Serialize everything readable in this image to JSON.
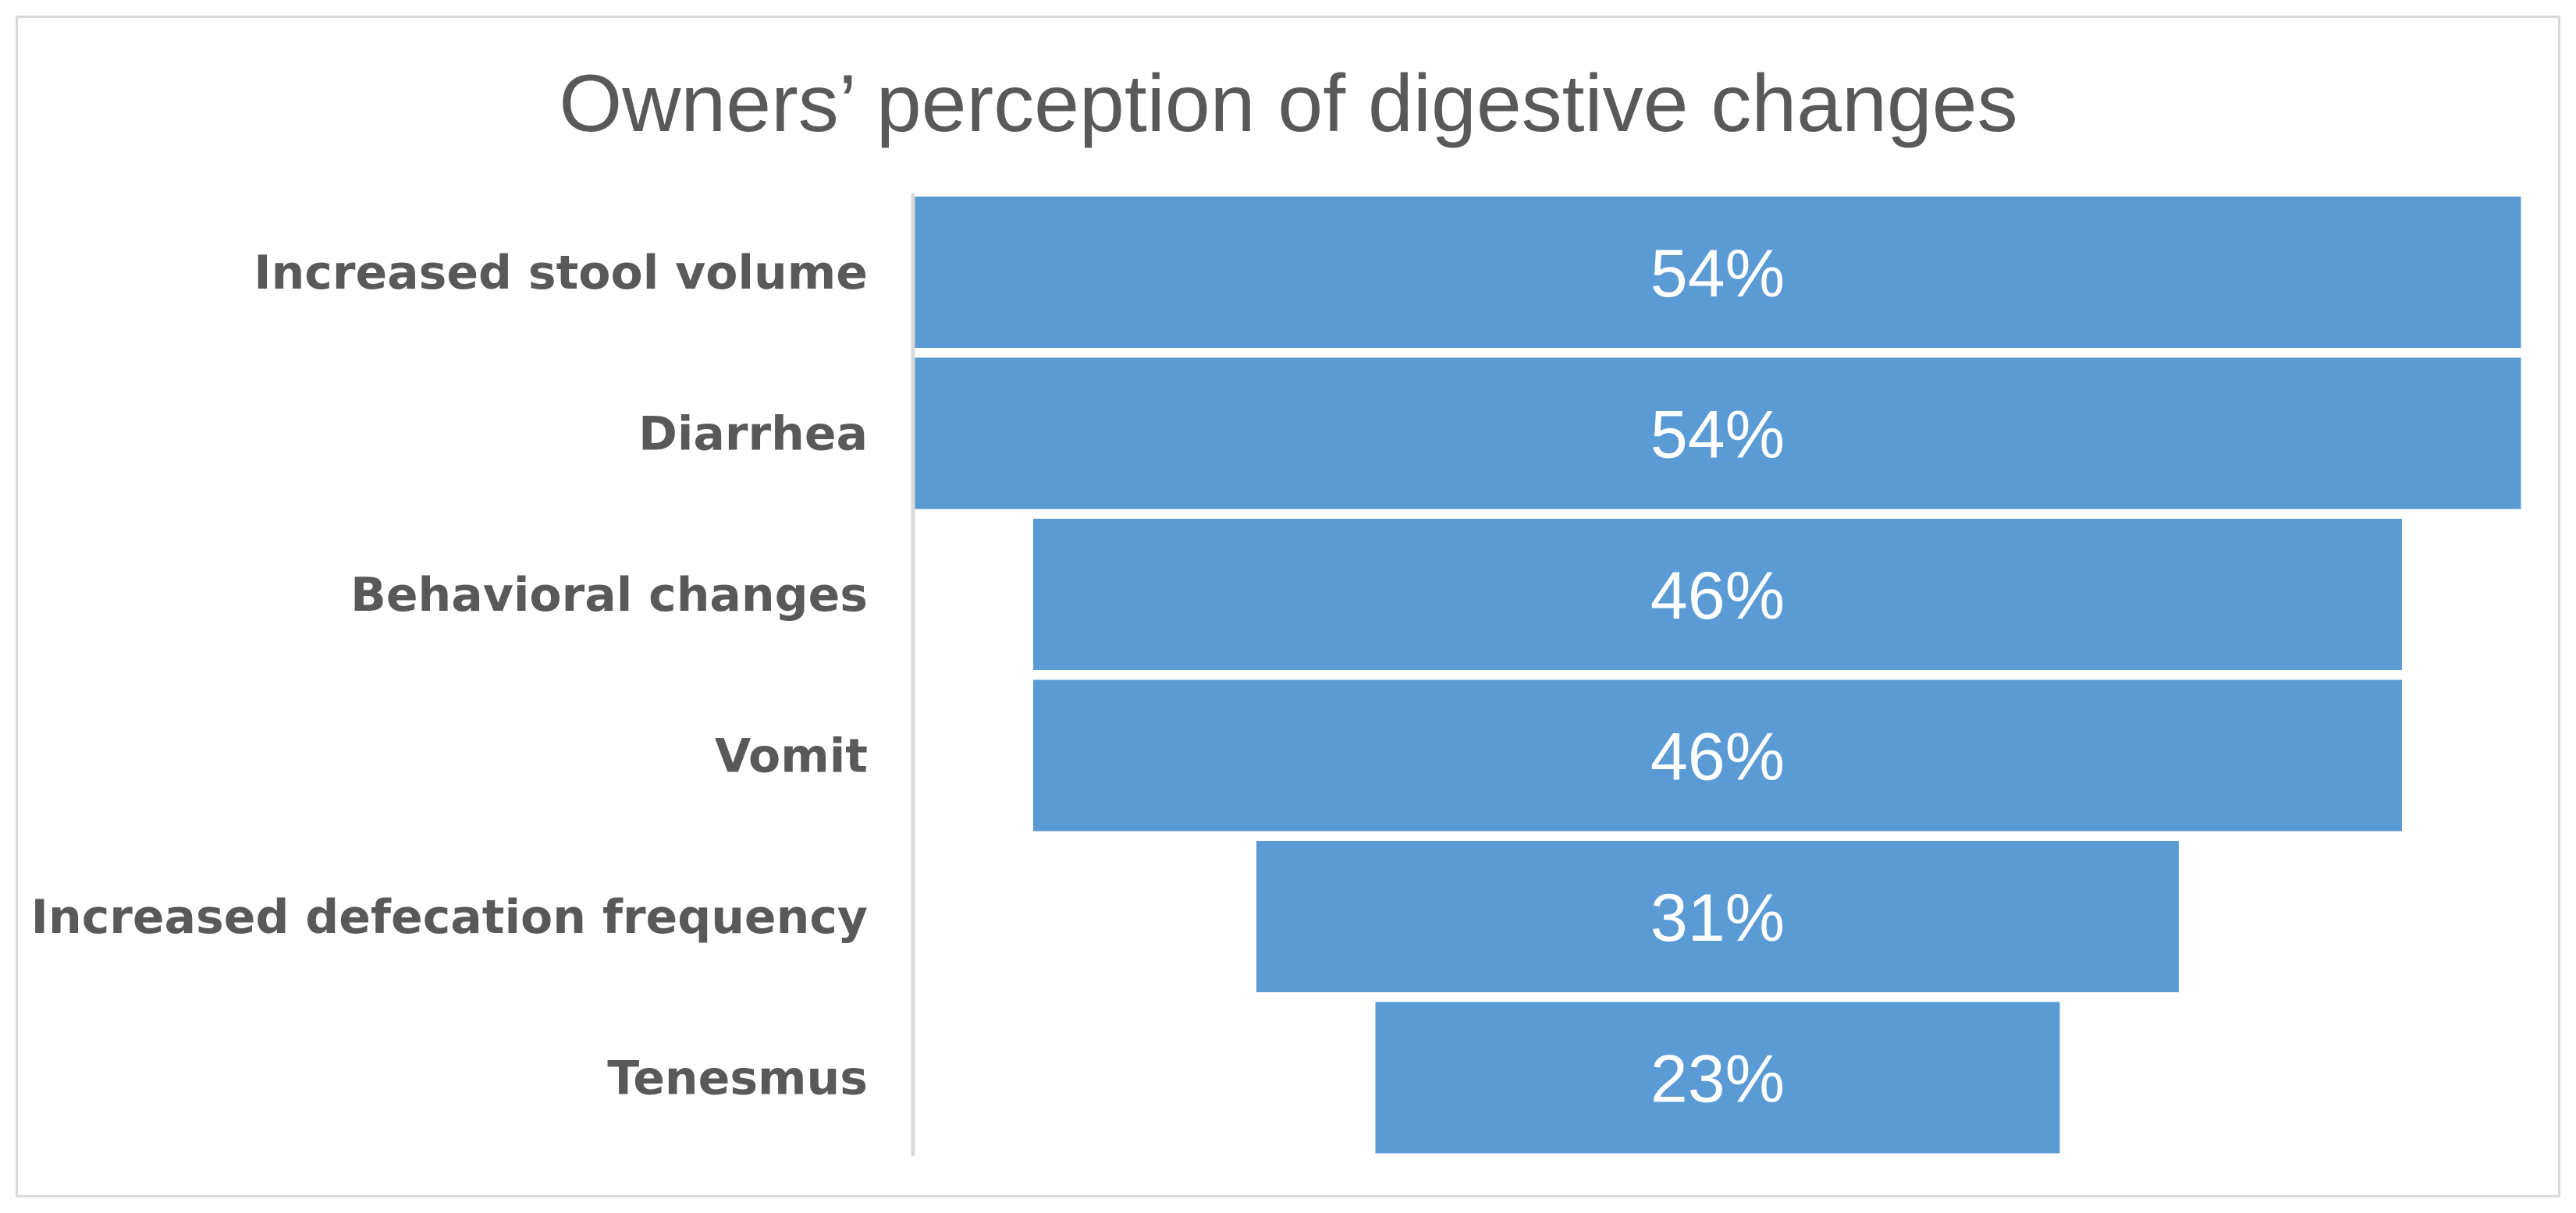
{
  "chart_data": {
    "type": "bar",
    "subtype": "funnel",
    "title": "Owners’ perception of digestive changes",
    "categories": [
      "Increased stool volume",
      "Diarrhea",
      "Behavioral changes",
      "Vomit",
      "Increased defecation frequency",
      "Tenesmus"
    ],
    "values": [
      54,
      54,
      46,
      46,
      31,
      23
    ],
    "data_labels": [
      "54%",
      "54%",
      "46%",
      "46%",
      "31%",
      "23%"
    ],
    "unit": "%",
    "xlabel": "",
    "ylabel": "",
    "grid": false,
    "legend": "none",
    "bar_color": "#5B9BD5",
    "text_color": "#595959",
    "label_color": "#FFFFFF",
    "axis_color": "#D9D9D9"
  }
}
